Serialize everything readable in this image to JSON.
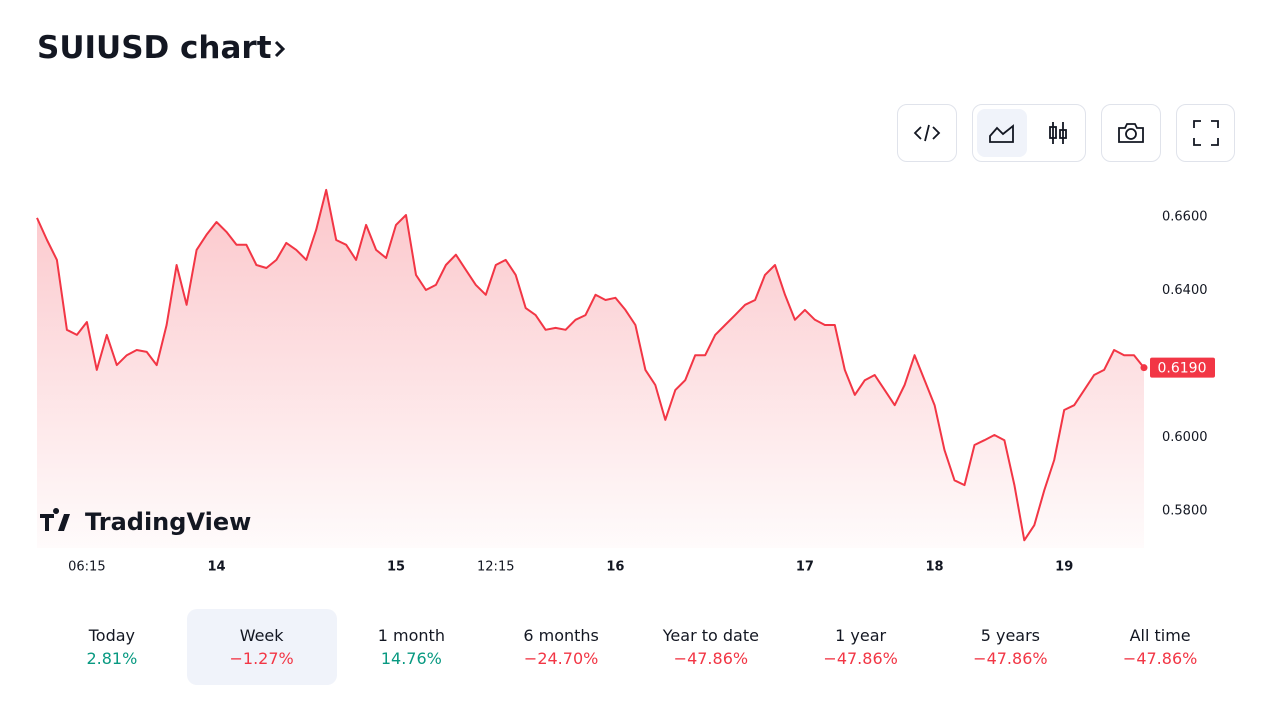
{
  "header": {
    "title": "SUIUSD chart"
  },
  "chart_data": {
    "type": "line",
    "watermark": "TradingView",
    "categories": [
      null,
      null,
      null,
      null,
      null,
      "06:15",
      null,
      null,
      null,
      null,
      null,
      null,
      null,
      null,
      null,
      null,
      null,
      null,
      "14",
      null,
      null,
      null,
      null,
      null,
      null,
      null,
      null,
      null,
      null,
      null,
      null,
      null,
      null,
      null,
      null,
      null,
      "15",
      null,
      null,
      null,
      null,
      null,
      null,
      null,
      null,
      null,
      "12:15",
      null,
      null,
      null,
      null,
      null,
      null,
      null,
      null,
      null,
      null,
      null,
      "16",
      null,
      null,
      null,
      null,
      null,
      null,
      null,
      null,
      null,
      null,
      null,
      null,
      null,
      null,
      null,
      null,
      null,
      null,
      "17",
      null,
      null,
      null,
      null,
      null,
      null,
      null,
      null,
      null,
      null,
      null,
      null,
      "18",
      null,
      null,
      null,
      null,
      null,
      null,
      null,
      null,
      null,
      null,
      null,
      null,
      "19",
      null,
      null,
      null,
      null,
      null,
      null,
      null,
      null
    ],
    "series": [
      {
        "name": "SUIUSD",
        "color": "#f23645",
        "values": [
          0.6597,
          0.6537,
          0.6483,
          0.6293,
          0.6279,
          0.6314,
          0.6184,
          0.6279,
          0.6197,
          0.6224,
          0.6238,
          0.6233,
          0.6197,
          0.6306,
          0.6469,
          0.6361,
          0.651,
          0.6551,
          0.6586,
          0.6559,
          0.6524,
          0.6524,
          0.6469,
          0.6461,
          0.6483,
          0.6529,
          0.651,
          0.6483,
          0.6565,
          0.6673,
          0.6537,
          0.6524,
          0.6483,
          0.6578,
          0.651,
          0.6488,
          0.6578,
          0.6605,
          0.6442,
          0.6401,
          0.6415,
          0.6469,
          0.6497,
          0.6456,
          0.6415,
          0.6388,
          0.6469,
          0.6483,
          0.6442,
          0.6352,
          0.6333,
          0.6293,
          0.6298,
          0.6293,
          0.632,
          0.6333,
          0.6388,
          0.6374,
          0.638,
          0.6347,
          0.6306,
          0.6184,
          0.6143,
          0.6048,
          0.6129,
          0.6156,
          0.6224,
          0.6224,
          0.6279,
          0.6306,
          0.6333,
          0.6361,
          0.6374,
          0.6442,
          0.6469,
          0.6388,
          0.632,
          0.6347,
          0.632,
          0.6306,
          0.6306,
          0.6184,
          0.6116,
          0.6156,
          0.617,
          0.6129,
          0.6088,
          0.6143,
          0.6224,
          0.6156,
          0.6088,
          0.5966,
          0.5884,
          0.5871,
          0.598,
          0.5993,
          0.6007,
          0.5993,
          0.5871,
          0.5721,
          0.5762,
          0.5857,
          0.5939,
          0.6075,
          0.6088,
          0.6129,
          0.617,
          0.6184,
          0.6238,
          0.6224,
          0.6224,
          0.619
        ]
      }
    ],
    "price_label": "0.6190",
    "ylim": [
      0.57,
      0.67
    ],
    "yticks": [
      {
        "value": 0.58,
        "label": "0.5800"
      },
      {
        "value": 0.6,
        "label": "0.6000"
      },
      {
        "value": 0.64,
        "label": "0.6400"
      },
      {
        "value": 0.66,
        "label": "0.6600"
      }
    ]
  },
  "periods": [
    {
      "label": "Today",
      "change": "2.81%",
      "color": "#089981"
    },
    {
      "label": "Week",
      "change": "−1.27%",
      "color": "#f23645",
      "active": true
    },
    {
      "label": "1 month",
      "change": "14.76%",
      "color": "#089981"
    },
    {
      "label": "6 months",
      "change": "−24.70%",
      "color": "#f23645"
    },
    {
      "label": "Year to date",
      "change": "−47.86%",
      "color": "#f23645"
    },
    {
      "label": "1 year",
      "change": "−47.86%",
      "color": "#f23645"
    },
    {
      "label": "5 years",
      "change": "−47.86%",
      "color": "#f23645"
    },
    {
      "label": "All time",
      "change": "−47.86%",
      "color": "#f23645"
    }
  ]
}
